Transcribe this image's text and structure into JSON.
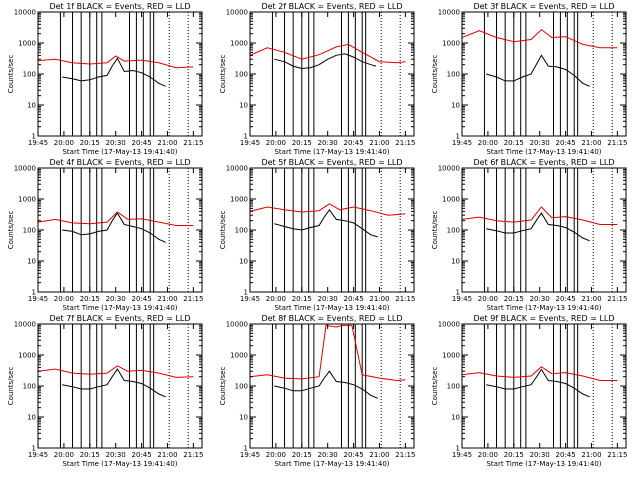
{
  "chart_data": [
    {
      "type": "line",
      "title": "Det 1f BLACK = Events, RED = LLD",
      "xlabel": "Start Time (17-May-13 19:41:40)",
      "ylabel": "Counts/sec",
      "yscale": "log",
      "ylim": [
        1,
        10000
      ],
      "xlim": [
        "19:45",
        "21:20"
      ],
      "x_ticks": [
        "19:45",
        "20:00",
        "20:15",
        "20:30",
        "20:45",
        "21:00",
        "21:15"
      ],
      "y_ticks": [
        "1",
        "10",
        "100",
        "1000",
        "10000"
      ],
      "series": [
        {
          "color": "#000000",
          "x": [
            "19:59",
            "20:05",
            "20:10",
            "20:15",
            "20:20",
            "20:25",
            "20:28",
            "20:31",
            "20:35",
            "20:40",
            "20:45",
            "20:50",
            "20:55",
            "20:59"
          ],
          "y": [
            80,
            70,
            60,
            65,
            80,
            90,
            180,
            320,
            120,
            130,
            110,
            80,
            50,
            40
          ]
        },
        {
          "color": "#dd0000",
          "x": [
            "19:45",
            "19:55",
            "20:05",
            "20:15",
            "20:25",
            "20:30",
            "20:35",
            "20:45",
            "20:55",
            "21:05",
            "21:15"
          ],
          "y": [
            270,
            300,
            230,
            210,
            230,
            380,
            260,
            280,
            230,
            160,
            170
          ]
        }
      ],
      "vlines_solid": [
        "19:58",
        "20:05",
        "20:10",
        "20:15",
        "20:19",
        "20:22",
        "20:38",
        "20:42",
        "20:46",
        "20:50",
        "20:52"
      ],
      "vlines_dotted": [
        "21:01",
        "21:12"
      ]
    },
    {
      "type": "line",
      "title": "Det 2f BLACK = Events, RED = LLD",
      "xlabel": "Start Time (17-May-13 19:41:40)",
      "ylabel": "Counts/sec",
      "yscale": "log",
      "ylim": [
        1,
        10000
      ],
      "xlim": [
        "19:45",
        "21:20"
      ],
      "x_ticks": [
        "19:45",
        "20:00",
        "20:15",
        "20:30",
        "20:45",
        "21:00",
        "21:15"
      ],
      "y_ticks": [
        "1",
        "10",
        "100",
        "1000",
        "10000"
      ],
      "series": [
        {
          "color": "#000000",
          "x": [
            "19:59",
            "20:05",
            "20:10",
            "20:15",
            "20:20",
            "20:25",
            "20:30",
            "20:35",
            "20:40",
            "20:45",
            "20:50",
            "20:55",
            "20:58"
          ],
          "y": [
            300,
            250,
            180,
            150,
            160,
            200,
            300,
            400,
            450,
            350,
            250,
            200,
            180
          ]
        },
        {
          "color": "#dd0000",
          "x": [
            "19:45",
            "19:55",
            "20:05",
            "20:15",
            "20:25",
            "20:35",
            "20:42",
            "20:50",
            "21:00",
            "21:10",
            "21:15"
          ],
          "y": [
            400,
            700,
            500,
            300,
            420,
            750,
            900,
            500,
            250,
            230,
            250
          ]
        }
      ],
      "vlines_solid": [
        "19:58",
        "20:05",
        "20:10",
        "20:15",
        "20:19",
        "20:22",
        "20:38",
        "20:42",
        "20:46",
        "20:50",
        "20:52"
      ],
      "vlines_dotted": [
        "21:01",
        "21:12"
      ]
    },
    {
      "type": "line",
      "title": "Det 3f BLACK = Events, RED = LLD",
      "xlabel": "Start Time (17-May-13 19:41:40)",
      "ylabel": "Counts/sec",
      "yscale": "log",
      "ylim": [
        1,
        10000
      ],
      "xlim": [
        "19:45",
        "21:20"
      ],
      "x_ticks": [
        "19:45",
        "20:00",
        "20:15",
        "20:30",
        "20:45",
        "21:00",
        "21:15"
      ],
      "y_ticks": [
        "1",
        "10",
        "100",
        "1000",
        "10000"
      ],
      "series": [
        {
          "color": "#000000",
          "x": [
            "19:59",
            "20:05",
            "20:10",
            "20:15",
            "20:20",
            "20:25",
            "20:28",
            "20:31",
            "20:35",
            "20:40",
            "20:45",
            "20:50",
            "20:55",
            "20:59"
          ],
          "y": [
            100,
            80,
            60,
            60,
            80,
            100,
            200,
            400,
            180,
            170,
            140,
            90,
            50,
            40
          ]
        },
        {
          "color": "#dd0000",
          "x": [
            "19:45",
            "19:55",
            "20:05",
            "20:15",
            "20:25",
            "20:31",
            "20:37",
            "20:45",
            "20:55",
            "21:05",
            "21:15"
          ],
          "y": [
            1500,
            2500,
            1500,
            1100,
            1300,
            2700,
            1500,
            1600,
            900,
            700,
            700
          ]
        }
      ],
      "vlines_solid": [
        "19:58",
        "20:05",
        "20:10",
        "20:15",
        "20:19",
        "20:22",
        "20:38",
        "20:42",
        "20:46",
        "20:50",
        "20:52"
      ],
      "vlines_dotted": [
        "21:01",
        "21:12"
      ]
    },
    {
      "type": "line",
      "title": "Det 4f BLACK = Events, RED = LLD",
      "xlabel": "Start Time (17-May-13 19:41:40)",
      "ylabel": "Counts/sec",
      "yscale": "log",
      "ylim": [
        1,
        10000
      ],
      "xlim": [
        "19:45",
        "21:20"
      ],
      "x_ticks": [
        "19:45",
        "20:00",
        "20:15",
        "20:30",
        "20:45",
        "21:00",
        "21:15"
      ],
      "y_ticks": [
        "1",
        "10",
        "100",
        "1000",
        "10000"
      ],
      "series": [
        {
          "color": "#000000",
          "x": [
            "19:59",
            "20:05",
            "20:10",
            "20:15",
            "20:20",
            "20:25",
            "20:28",
            "20:31",
            "20:35",
            "20:40",
            "20:45",
            "20:50",
            "20:55",
            "20:59"
          ],
          "y": [
            100,
            90,
            70,
            75,
            90,
            100,
            200,
            350,
            150,
            130,
            110,
            80,
            50,
            40
          ]
        },
        {
          "color": "#dd0000",
          "x": [
            "19:45",
            "19:55",
            "20:05",
            "20:15",
            "20:25",
            "20:31",
            "20:37",
            "20:45",
            "20:55",
            "21:05",
            "21:15"
          ],
          "y": [
            180,
            220,
            170,
            160,
            180,
            380,
            220,
            230,
            180,
            140,
            140
          ]
        }
      ],
      "vlines_solid": [
        "19:58",
        "20:05",
        "20:10",
        "20:15",
        "20:19",
        "20:22",
        "20:38",
        "20:42",
        "20:46",
        "20:50",
        "20:52"
      ],
      "vlines_dotted": [
        "21:01",
        "21:12"
      ]
    },
    {
      "type": "line",
      "title": "Det 5f BLACK = Events, RED = LLD",
      "xlabel": "Start Time (17-May-13 19:41:40)",
      "ylabel": "Counts/sec",
      "yscale": "log",
      "ylim": [
        1,
        10000
      ],
      "xlim": [
        "19:45",
        "21:20"
      ],
      "x_ticks": [
        "19:45",
        "20:00",
        "20:15",
        "20:30",
        "20:45",
        "21:00",
        "21:15"
      ],
      "y_ticks": [
        "1",
        "10",
        "100",
        "1000",
        "10000"
      ],
      "series": [
        {
          "color": "#000000",
          "x": [
            "19:59",
            "20:05",
            "20:10",
            "20:15",
            "20:20",
            "20:25",
            "20:28",
            "20:31",
            "20:35",
            "20:40",
            "20:45",
            "20:50",
            "20:55",
            "20:59"
          ],
          "y": [
            160,
            130,
            110,
            100,
            120,
            140,
            260,
            450,
            220,
            200,
            170,
            110,
            70,
            60
          ]
        },
        {
          "color": "#dd0000",
          "x": [
            "19:45",
            "19:55",
            "20:05",
            "20:15",
            "20:25",
            "20:31",
            "20:37",
            "20:45",
            "20:55",
            "21:05",
            "21:15"
          ],
          "y": [
            400,
            550,
            450,
            380,
            420,
            700,
            450,
            550,
            420,
            300,
            330
          ]
        }
      ],
      "vlines_solid": [
        "19:58",
        "20:05",
        "20:10",
        "20:15",
        "20:19",
        "20:22",
        "20:38",
        "20:42",
        "20:46",
        "20:50",
        "20:52"
      ],
      "vlines_dotted": [
        "21:01",
        "21:12"
      ]
    },
    {
      "type": "line",
      "title": "Det 6f BLACK = Events, RED = LLD",
      "xlabel": "Start Time (17-May-13 19:41:40)",
      "ylabel": "Counts/sec",
      "yscale": "log",
      "ylim": [
        1,
        10000
      ],
      "xlim": [
        "19:45",
        "21:20"
      ],
      "x_ticks": [
        "19:45",
        "20:00",
        "20:15",
        "20:30",
        "20:45",
        "21:00",
        "21:15"
      ],
      "y_ticks": [
        "1",
        "10",
        "100",
        "1000",
        "10000"
      ],
      "series": [
        {
          "color": "#000000",
          "x": [
            "19:59",
            "20:05",
            "20:10",
            "20:15",
            "20:20",
            "20:25",
            "20:28",
            "20:31",
            "20:35",
            "20:40",
            "20:45",
            "20:50",
            "20:55",
            "20:59"
          ],
          "y": [
            110,
            95,
            80,
            80,
            95,
            110,
            200,
            350,
            150,
            140,
            120,
            85,
            55,
            45
          ]
        },
        {
          "color": "#dd0000",
          "x": [
            "19:45",
            "19:55",
            "20:05",
            "20:15",
            "20:25",
            "20:31",
            "20:37",
            "20:45",
            "20:55",
            "21:05",
            "21:15"
          ],
          "y": [
            220,
            260,
            200,
            180,
            210,
            550,
            250,
            270,
            210,
            150,
            150
          ]
        }
      ],
      "vlines_solid": [
        "19:58",
        "20:05",
        "20:10",
        "20:15",
        "20:19",
        "20:22",
        "20:38",
        "20:42",
        "20:46",
        "20:50",
        "20:52"
      ],
      "vlines_dotted": [
        "21:01",
        "21:12"
      ]
    },
    {
      "type": "line",
      "title": "Det 7f BLACK = Events, RED = LLD",
      "xlabel": "Start Time (17-May-13 19:41:40)",
      "ylabel": "Counts/sec",
      "yscale": "log",
      "ylim": [
        1,
        10000
      ],
      "xlim": [
        "19:45",
        "21:20"
      ],
      "x_ticks": [
        "19:45",
        "20:00",
        "20:15",
        "20:30",
        "20:45",
        "21:00",
        "21:15"
      ],
      "y_ticks": [
        "1",
        "10",
        "100",
        "1000",
        "10000"
      ],
      "series": [
        {
          "color": "#000000",
          "x": [
            "19:59",
            "20:05",
            "20:10",
            "20:15",
            "20:20",
            "20:25",
            "20:28",
            "20:31",
            "20:35",
            "20:40",
            "20:45",
            "20:50",
            "20:55",
            "20:59"
          ],
          "y": [
            110,
            95,
            80,
            80,
            95,
            110,
            200,
            350,
            150,
            140,
            120,
            85,
            55,
            45
          ]
        },
        {
          "color": "#dd0000",
          "x": [
            "19:45",
            "19:55",
            "20:05",
            "20:15",
            "20:25",
            "20:31",
            "20:37",
            "20:45",
            "20:55",
            "21:05",
            "21:15"
          ],
          "y": [
            300,
            350,
            260,
            240,
            260,
            450,
            300,
            320,
            260,
            190,
            200
          ]
        }
      ],
      "vlines_solid": [
        "19:58",
        "20:05",
        "20:10",
        "20:15",
        "20:19",
        "20:22",
        "20:38",
        "20:42",
        "20:46",
        "20:50",
        "20:52"
      ],
      "vlines_dotted": [
        "21:01",
        "21:12"
      ]
    },
    {
      "type": "line",
      "title": "Det 8f BLACK = Events, RED = LLD",
      "xlabel": "Start Time (17-May-13 19:41:40)",
      "ylabel": "Counts/sec",
      "yscale": "log",
      "ylim": [
        1,
        10000
      ],
      "xlim": [
        "19:45",
        "21:20"
      ],
      "x_ticks": [
        "19:45",
        "20:00",
        "20:15",
        "20:30",
        "20:45",
        "21:00",
        "21:15"
      ],
      "y_ticks": [
        "1",
        "10",
        "100",
        "1000",
        "10000"
      ],
      "series": [
        {
          "color": "#000000",
          "x": [
            "19:59",
            "20:05",
            "20:10",
            "20:15",
            "20:20",
            "20:25",
            "20:28",
            "20:31",
            "20:35",
            "20:40",
            "20:45",
            "20:50",
            "20:55",
            "20:59"
          ],
          "y": [
            100,
            85,
            70,
            70,
            85,
            100,
            180,
            300,
            140,
            130,
            110,
            80,
            50,
            40
          ]
        },
        {
          "color": "#dd0000",
          "x": [
            "19:45",
            "19:55",
            "20:05",
            "20:15",
            "20:25",
            "20:29",
            "20:35",
            "20:39",
            "20:44",
            "20:50",
            "21:00",
            "21:10",
            "21:15"
          ],
          "y": [
            200,
            230,
            180,
            170,
            200,
            9000,
            8000,
            9000,
            9000,
            230,
            180,
            150,
            160
          ]
        }
      ],
      "vlines_solid": [
        "19:58",
        "20:05",
        "20:10",
        "20:15",
        "20:19",
        "20:22",
        "20:38",
        "20:42",
        "20:46",
        "20:50",
        "20:52"
      ],
      "vlines_dotted": [
        "21:01",
        "21:12"
      ]
    },
    {
      "type": "line",
      "title": "Det 9f BLACK = Events, RED = LLD",
      "xlabel": "Start Time (17-May-13 19:41:40)",
      "ylabel": "Counts/sec",
      "yscale": "log",
      "ylim": [
        1,
        10000
      ],
      "xlim": [
        "19:45",
        "21:20"
      ],
      "x_ticks": [
        "19:45",
        "20:00",
        "20:15",
        "20:30",
        "20:45",
        "21:00",
        "21:15"
      ],
      "y_ticks": [
        "1",
        "10",
        "100",
        "1000",
        "10000"
      ],
      "series": [
        {
          "color": "#000000",
          "x": [
            "19:59",
            "20:05",
            "20:10",
            "20:15",
            "20:20",
            "20:25",
            "20:28",
            "20:31",
            "20:35",
            "20:40",
            "20:45",
            "20:50",
            "20:55",
            "20:59"
          ],
          "y": [
            110,
            95,
            80,
            80,
            95,
            110,
            190,
            340,
            150,
            140,
            120,
            85,
            55,
            45
          ]
        },
        {
          "color": "#dd0000",
          "x": [
            "19:45",
            "19:55",
            "20:05",
            "20:15",
            "20:25",
            "20:31",
            "20:37",
            "20:45",
            "20:55",
            "21:05",
            "21:15"
          ],
          "y": [
            230,
            270,
            210,
            190,
            210,
            420,
            250,
            270,
            210,
            150,
            150
          ]
        }
      ],
      "vlines_solid": [
        "19:58",
        "20:05",
        "20:10",
        "20:15",
        "20:19",
        "20:22",
        "20:38",
        "20:42",
        "20:46",
        "20:50",
        "20:52"
      ],
      "vlines_dotted": [
        "21:01",
        "21:12"
      ]
    }
  ]
}
